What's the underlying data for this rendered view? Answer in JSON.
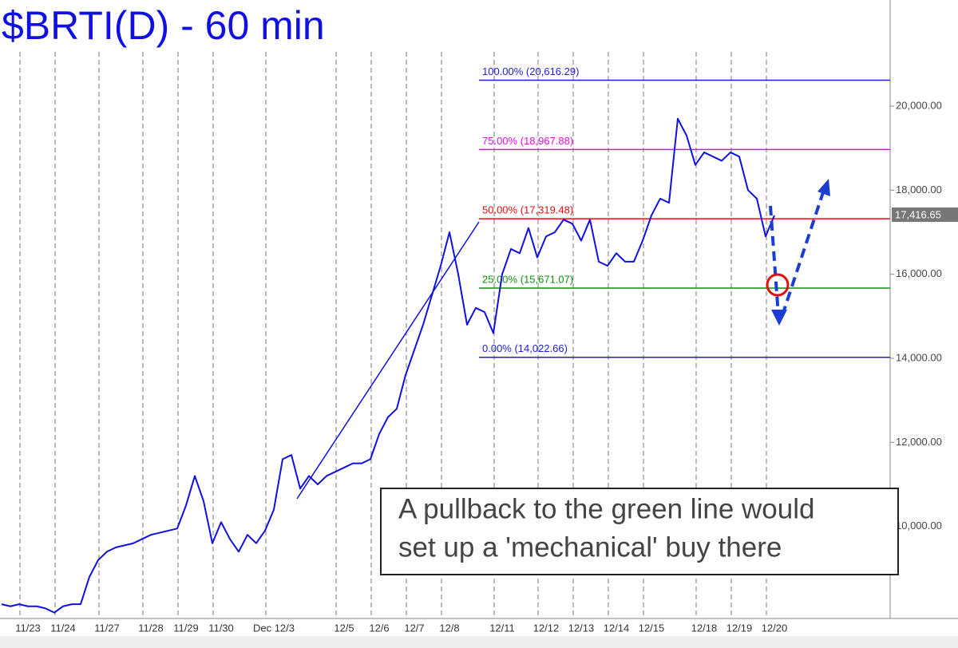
{
  "chart_data": {
    "type": "line",
    "title": "$BRTI(D) - 60 min",
    "color": "#1010e0",
    "categories": [
      null,
      null,
      null,
      "11/23",
      null,
      null,
      null,
      "11/24",
      null,
      null,
      null,
      null,
      "11/27",
      null,
      null,
      null,
      null,
      "11/28",
      null,
      null,
      null,
      "11/29",
      null,
      null,
      null,
      "11/30",
      null,
      null,
      null,
      null,
      null,
      "Dec 12/3",
      null,
      null,
      null,
      null,
      null,
      null,
      null,
      "12/5",
      null,
      null,
      null,
      "12/6",
      null,
      null,
      null,
      "12/7",
      null,
      null,
      null,
      "12/8",
      null,
      null,
      null,
      null,
      null,
      "12/11",
      null,
      null,
      null,
      null,
      "12/12",
      null,
      null,
      null,
      "12/13",
      null,
      null,
      null,
      "12/14",
      null,
      null,
      null,
      "12/15",
      null,
      null,
      null,
      null,
      null,
      "12/18",
      null,
      null,
      null,
      "12/19",
      null,
      null,
      null,
      "12/20"
    ],
    "values": [
      8150,
      8100,
      8150,
      8100,
      8100,
      8050,
      7950,
      8100,
      8150,
      8150,
      8800,
      9200,
      9400,
      9500,
      9550,
      9600,
      9700,
      9800,
      9850,
      9900,
      9950,
      10500,
      11200,
      10600,
      9600,
      10100,
      9700,
      9400,
      9800,
      9600,
      9900,
      10400,
      11600,
      11700,
      10900,
      11200,
      11000,
      11200,
      11300,
      11400,
      11500,
      11500,
      11600,
      12200,
      12600,
      12800,
      13600,
      14200,
      14800,
      15500,
      16200,
      17000,
      16000,
      14800,
      15200,
      15100,
      14600,
      16000,
      16600,
      16500,
      17100,
      16400,
      16900,
      17000,
      17300,
      17200,
      16800,
      17300,
      16300,
      16200,
      16500,
      16300,
      16300,
      16800,
      17400,
      17800,
      17700,
      19700,
      19300,
      18600,
      18900,
      18800,
      18700,
      18900,
      18800,
      18000,
      17800,
      16900,
      17400
    ],
    "ylim": [
      7810,
      22525
    ],
    "yticks": [
      {
        "value": 10000,
        "label": "10,000.00"
      },
      {
        "value": 12000,
        "label": "12,000.00"
      },
      {
        "value": 14000,
        "label": "14,000.00"
      },
      {
        "value": 16000,
        "label": "16,000.00"
      },
      {
        "value": 18000,
        "label": "18,000.00"
      },
      {
        "value": 20000,
        "label": "20,000.00"
      }
    ],
    "last_price": {
      "value": 17416.65,
      "label": "17,416.65"
    },
    "levels": [
      {
        "value": 20616.29,
        "label": "100.00% (20,616.29)",
        "color": "#2020d0"
      },
      {
        "value": 18967.88,
        "label": "75.00% (18,967.88)",
        "color": "#e010e0"
      },
      {
        "value": 17319.48,
        "label": "50.00% (17,319.48)",
        "color": "#e01010"
      },
      {
        "value": 15671.07,
        "label": "25.00% (15,671.07)",
        "color": "#109010"
      },
      {
        "value": 14022.66,
        "label": "0.00% (14,022.66)",
        "color": "#2020d0"
      }
    ],
    "note": [
      "A pullback to the green line would",
      "set up a 'mechanical' buy there"
    ]
  }
}
